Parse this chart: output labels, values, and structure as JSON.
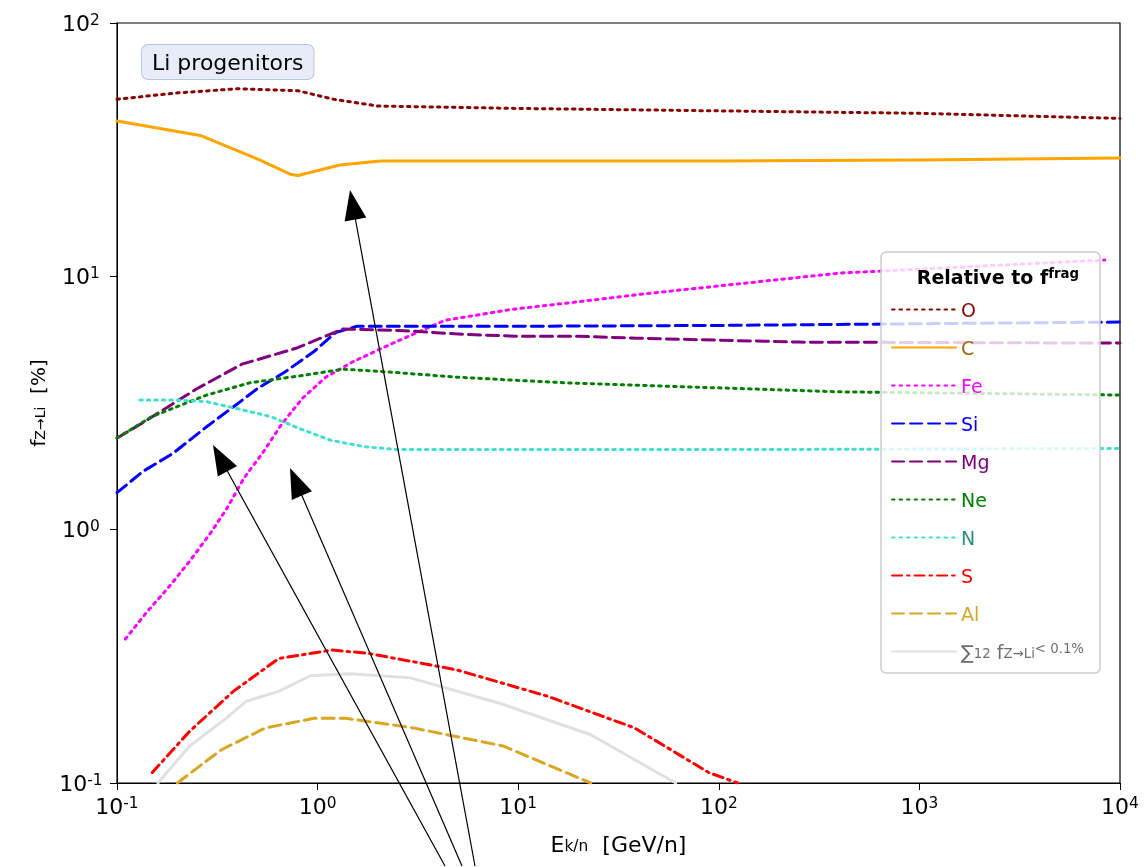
{
  "chart_data": {
    "type": "line",
    "xlabel": "E$_{k/n}$  [GeV/n]",
    "ylabel": "f$_{Z→Li}$  [%]",
    "legend_title": "Relative to f$^{frag}$",
    "annotations": [
      "Li progenitors"
    ],
    "log": "xy",
    "grid": false,
    "legend": "right",
    "xlim": [
      0.1,
      10000
    ],
    "ylim": [
      0.1,
      100
    ],
    "xticks": [
      {
        "value": 0.1,
        "label": "10$^{-1}$"
      },
      {
        "value": 1,
        "label": "10$^{0}$"
      },
      {
        "value": 10,
        "label": "10$^{1}$"
      },
      {
        "value": 100,
        "label": "10$^{2}$"
      },
      {
        "value": 1000,
        "label": "10$^{3}$"
      },
      {
        "value": 10000,
        "label": "10$^{4}$"
      }
    ],
    "yticks": [
      {
        "value": 0.1,
        "label": "10$^{-1}$"
      },
      {
        "value": 1,
        "label": "10$^{0}$"
      },
      {
        "value": 10,
        "label": "10$^{1}$"
      },
      {
        "value": 100,
        "label": "10$^{2}$"
      }
    ],
    "series": [
      {
        "name": "O",
        "color": "#8b0000",
        "line_style": "dotted",
        "x": [
          0.1,
          0.2,
          0.4,
          0.8,
          1.2,
          2,
          10,
          100,
          1000,
          10000
        ],
        "values": [
          50,
          53,
          55,
          54,
          50,
          47,
          46,
          45,
          44,
          42
        ]
      },
      {
        "name": "C",
        "color": "#ffa500",
        "line_style": "solid",
        "x": [
          0.1,
          0.26,
          0.52,
          0.73,
          0.8,
          1.29,
          2.05,
          10,
          100,
          1000,
          10000
        ],
        "values": [
          41,
          36,
          28.7,
          25.3,
          25,
          27.5,
          28.5,
          28.5,
          28.5,
          28.8,
          29.3
        ]
      },
      {
        "name": "Fe",
        "color": "#ff00ff",
        "line_style": "dotted",
        "x": [
          0.11,
          0.14,
          0.18,
          0.23,
          0.29,
          0.35,
          0.43,
          0.53,
          0.66,
          0.84,
          1.1,
          1.5,
          2.2,
          4.3,
          9.2,
          19,
          41,
          400,
          8400
        ],
        "values": [
          0.37,
          0.47,
          0.59,
          0.75,
          0.96,
          1.2,
          1.6,
          2.0,
          2.6,
          3.3,
          4.0,
          4.6,
          5.3,
          6.7,
          7.4,
          7.9,
          8.5,
          10.3,
          11.6
        ]
      },
      {
        "name": "Si",
        "color": "#0000ff",
        "line_style": "dashed",
        "x": [
          0.1,
          0.135,
          0.19,
          0.28,
          0.39,
          0.5,
          0.69,
          0.96,
          1.23,
          1.57,
          10,
          100,
          10000
        ],
        "values": [
          1.4,
          1.7,
          2.0,
          2.55,
          3.1,
          3.6,
          4.2,
          5.05,
          6.0,
          6.35,
          6.35,
          6.4,
          6.6
        ]
      },
      {
        "name": "Mg",
        "color": "#800080",
        "line_style": "dashed",
        "x": [
          0.1,
          0.13,
          0.25,
          0.42,
          0.78,
          1.34,
          2.7,
          5.4,
          10,
          20,
          39,
          250,
          10000
        ],
        "values": [
          2.3,
          2.6,
          3.6,
          4.5,
          5.2,
          6.2,
          6.1,
          5.9,
          5.8,
          5.8,
          5.7,
          5.5,
          5.45
        ]
      },
      {
        "name": "Ne",
        "color": "#008000",
        "line_style": "dotted",
        "x": [
          0.1,
          0.15,
          0.28,
          0.46,
          0.82,
          1.34,
          2.2,
          4.9,
          17,
          47,
          400,
          10000
        ],
        "values": [
          2.3,
          2.8,
          3.4,
          3.8,
          4.05,
          4.3,
          4.2,
          4.0,
          3.8,
          3.7,
          3.5,
          3.4
        ]
      },
      {
        "name": "N",
        "color": "#40e0d0",
        "line_style": "dotted",
        "x": [
          0.13,
          0.19,
          0.28,
          0.4,
          0.58,
          0.82,
          1.17,
          1.7,
          2.45,
          100,
          10000
        ],
        "values": [
          3.25,
          3.25,
          3.2,
          3.0,
          2.8,
          2.5,
          2.25,
          2.13,
          2.07,
          2.07,
          2.09
        ]
      },
      {
        "name": "S",
        "color": "#ff0000",
        "line_style": "dashdot",
        "x": [
          0.15,
          0.23,
          0.38,
          0.64,
          1.18,
          1.78,
          4.9,
          14,
          38,
          89,
          124
        ],
        "values": [
          0.11,
          0.16,
          0.23,
          0.31,
          0.335,
          0.325,
          0.28,
          0.22,
          0.165,
          0.11,
          0.1
        ]
      },
      {
        "name": "Al",
        "color": "#daa520",
        "line_style": "dashed",
        "x": [
          0.2,
          0.33,
          0.55,
          0.96,
          1.38,
          3,
          8.4,
          23
        ],
        "values": [
          0.1,
          0.135,
          0.165,
          0.18,
          0.18,
          0.165,
          0.14,
          0.1
        ]
      },
      {
        "name": "∑$_{12}$ f$_{Z→Li}$$^{< 0.1%}$",
        "color": "#e0e0e0",
        "line_style": "solid",
        "x": [
          0.16,
          0.23,
          0.35,
          0.44,
          0.64,
          0.92,
          1.45,
          2.9,
          8.3,
          23,
          61
        ],
        "values": [
          0.1,
          0.14,
          0.18,
          0.21,
          0.23,
          0.265,
          0.27,
          0.26,
          0.205,
          0.155,
          0.1
        ]
      }
    ]
  }
}
